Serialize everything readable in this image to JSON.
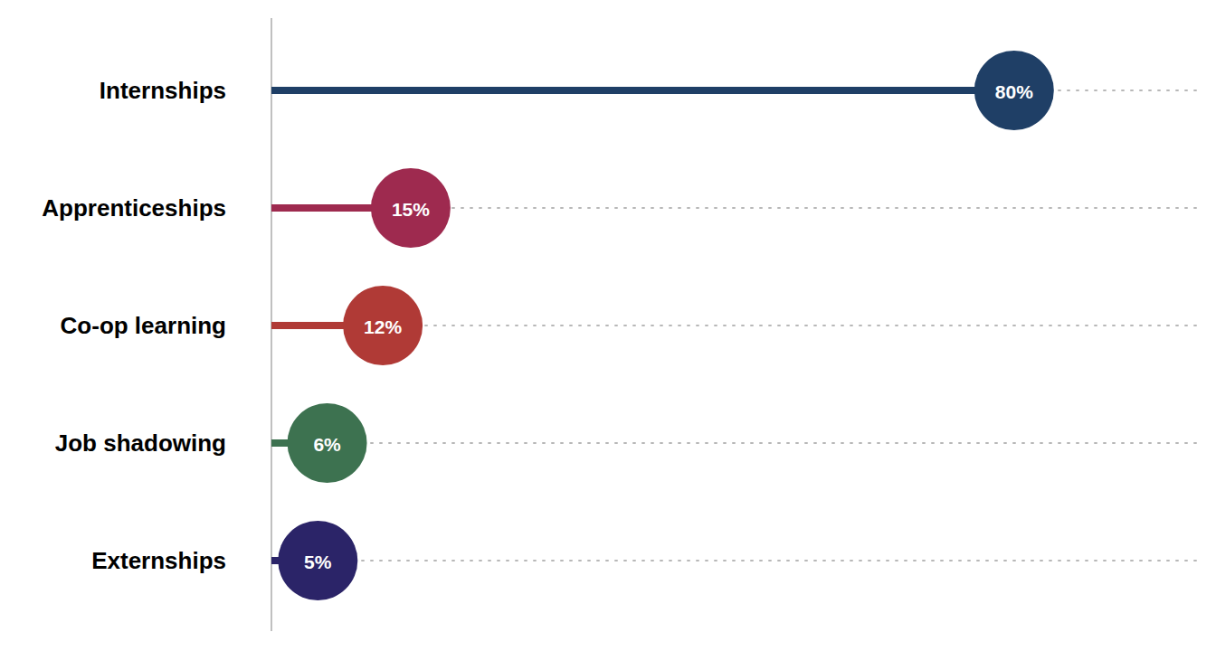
{
  "chart_data": {
    "type": "lollipop",
    "orientation": "horizontal",
    "categories": [
      "Internships",
      "Apprenticeships",
      "Co-op learning",
      "Job shadowing",
      "Externships"
    ],
    "values": [
      80,
      15,
      12,
      6,
      5
    ],
    "value_labels": [
      "80%",
      "15%",
      "12%",
      "6%",
      "5%"
    ],
    "colors": [
      "#1f3f66",
      "#9e2a4f",
      "#b03a36",
      "#3d7250",
      "#2b2468"
    ],
    "xlim": [
      0,
      100
    ],
    "data_labels": true,
    "tick_labels": false,
    "grid": true
  }
}
